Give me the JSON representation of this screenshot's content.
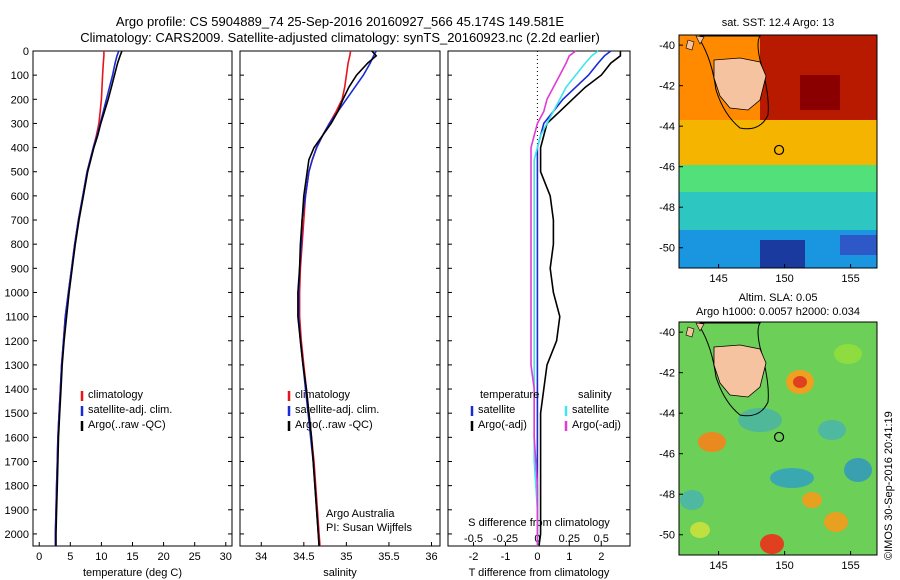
{
  "header": {
    "line1": "Argo profile: CS 5904889_74 25-Sep-2016 20160927_566 45.174S 149.581E",
    "line2": "Climatology: CARS2009. Satellite-adjusted climatology: synTS_20160923.nc (2.2d earlier)"
  },
  "credits": {
    "watermark": "©IMOS 30-Sep-2016 20:41:19",
    "group": "Argo Australia",
    "pi": "PI: Susan Wijffels"
  },
  "colors": {
    "red": "#e8141c",
    "blue": "#1a2ad6",
    "black": "#000000",
    "cyan": "#3fe6ee",
    "magenta": "#e23ad6",
    "land": "#f5c3a0"
  },
  "chart_data": [
    {
      "type": "line",
      "id": "temperature",
      "xlabel": "temperature (deg C)",
      "xlim": [
        -1,
        31
      ],
      "xticks": [
        0,
        5,
        10,
        15,
        20,
        25,
        30
      ],
      "ylim": [
        0,
        2050
      ],
      "yticks": [
        0,
        100,
        200,
        300,
        400,
        500,
        600,
        700,
        800,
        900,
        1000,
        1100,
        1200,
        1300,
        1400,
        1500,
        1600,
        1700,
        1800,
        1900,
        2000
      ],
      "legend": [
        "climatology",
        "satellite-adj. clim.",
        "Argo(..raw -QC)"
      ],
      "depth": [
        0,
        20,
        50,
        100,
        150,
        200,
        250,
        300,
        350,
        400,
        450,
        500,
        600,
        700,
        800,
        900,
        1000,
        1100,
        1200,
        1300,
        1400,
        1500,
        1600,
        1700,
        1800,
        1900,
        2000,
        2050
      ],
      "series": [
        {
          "name": "climatology",
          "color": "red",
          "values": [
            10.4,
            10.4,
            10.3,
            10.2,
            10.1,
            10.0,
            9.8,
            9.6,
            9.2,
            8.7,
            8.2,
            7.7,
            7.0,
            6.3,
            5.7,
            5.2,
            4.7,
            4.2,
            3.9,
            3.6,
            3.4,
            3.2,
            3.0,
            2.9,
            2.8,
            2.7,
            2.6,
            2.6
          ]
        },
        {
          "name": "satellite-adj. clim.",
          "color": "blue",
          "values": [
            12.8,
            12.5,
            12.2,
            11.8,
            11.3,
            10.8,
            10.3,
            9.8,
            9.3,
            8.7,
            8.2,
            7.7,
            7.0,
            6.3,
            5.7,
            5.2,
            4.7,
            4.2,
            3.9,
            3.6,
            3.4,
            3.2,
            3.0,
            2.9,
            2.8,
            2.7,
            2.6,
            2.6
          ]
        },
        {
          "name": "Argo(..raw -QC)",
          "color": "black",
          "values": [
            13.3,
            13.0,
            12.6,
            12.1,
            11.6,
            11.1,
            10.5,
            9.9,
            9.4,
            8.8,
            8.3,
            7.8,
            7.1,
            6.4,
            5.8,
            5.3,
            4.8,
            4.4,
            4.0,
            3.7,
            3.5,
            3.3,
            3.1,
            3.0,
            2.9,
            2.8,
            2.7,
            2.7
          ]
        }
      ]
    },
    {
      "type": "line",
      "id": "salinity",
      "xlabel": "salinity",
      "xlim": [
        33.75,
        36.1
      ],
      "xticks": [
        34,
        34.5,
        35,
        35.5,
        36
      ],
      "ylim": [
        0,
        2050
      ],
      "legend": [
        "climatology",
        "satellite-adj. clim.",
        "Argo(..raw -QC)"
      ],
      "depth": [
        0,
        20,
        50,
        100,
        150,
        200,
        250,
        300,
        350,
        400,
        450,
        500,
        600,
        700,
        800,
        900,
        1000,
        1100,
        1200,
        1300,
        1400,
        1500,
        1600,
        1700,
        1800,
        1900,
        2000,
        2050
      ],
      "series": [
        {
          "name": "climatology",
          "color": "red",
          "values": [
            35.05,
            35.04,
            35.02,
            35.0,
            34.98,
            34.95,
            34.88,
            34.8,
            34.72,
            34.65,
            34.6,
            34.56,
            34.52,
            34.5,
            34.48,
            34.46,
            34.45,
            34.45,
            34.47,
            34.5,
            34.53,
            34.56,
            34.59,
            34.62,
            34.64,
            34.66,
            34.68,
            34.69
          ]
        },
        {
          "name": "satellite-adj. clim.",
          "color": "blue",
          "values": [
            35.35,
            35.32,
            35.28,
            35.2,
            35.1,
            35.0,
            34.9,
            34.8,
            34.72,
            34.65,
            34.6,
            34.56,
            34.52,
            34.48,
            34.47,
            34.45,
            34.44,
            34.44,
            34.46,
            34.49,
            34.52,
            34.55,
            34.58,
            34.61,
            34.63,
            34.65,
            34.67,
            34.68
          ]
        },
        {
          "name": "Argo(..raw -QC)",
          "color": "black",
          "values": [
            35.3,
            35.35,
            35.25,
            35.12,
            35.03,
            34.96,
            34.9,
            34.82,
            34.72,
            34.62,
            34.56,
            34.54,
            34.5,
            34.48,
            34.46,
            34.45,
            34.43,
            34.43,
            34.46,
            34.49,
            34.53,
            34.56,
            34.59,
            34.61,
            34.63,
            34.65,
            34.67,
            34.68
          ]
        }
      ]
    },
    {
      "type": "line",
      "id": "difference",
      "xlabel": "T difference from climatology",
      "xlabel_top": "S difference from climatology",
      "xlim": [
        -2.8,
        2.9
      ],
      "xticks": [
        -2,
        -1,
        0,
        1,
        2
      ],
      "xticks_s": [
        -0.5,
        -0.25,
        0,
        0.25,
        0.5
      ],
      "xticklabels_s": [
        "-0.5",
        "-0.25",
        "0",
        "0.25",
        "0.5"
      ],
      "s_scale": 4,
      "ylim": [
        0,
        2050
      ],
      "legend_title_t": "temperature",
      "legend_title_s": "salinity",
      "legend_t": [
        "satellite",
        "Argo(-adj)"
      ],
      "legend_s": [
        "satellite",
        "Argo(-adj)"
      ],
      "depth": [
        0,
        20,
        50,
        100,
        150,
        200,
        250,
        300,
        350,
        400,
        450,
        500,
        600,
        700,
        800,
        900,
        1000,
        1100,
        1200,
        1300,
        1400,
        1500,
        1600,
        1700,
        1800,
        1900,
        2000,
        2050
      ],
      "series": [
        {
          "name": "T satellite",
          "color": "blue",
          "values": [
            2.3,
            2.1,
            1.9,
            1.6,
            1.2,
            0.8,
            0.5,
            0.2,
            0.1,
            0.0,
            0.0,
            0.0,
            0.0,
            0.0,
            0.0,
            0.0,
            0.0,
            0.0,
            0.0,
            0.0,
            0.0,
            0.0,
            0.0,
            0.0,
            0.0,
            0.0,
            0.0,
            0.0
          ]
        },
        {
          "name": "T Argo(-adj)",
          "color": "black",
          "values": [
            2.6,
            2.6,
            2.3,
            2.0,
            1.5,
            1.1,
            0.7,
            0.3,
            0.2,
            0.1,
            0.1,
            0.1,
            0.4,
            0.5,
            0.5,
            0.4,
            0.5,
            0.7,
            0.6,
            0.3,
            0.2,
            0.1,
            0.1,
            0.1,
            0.1,
            0.1,
            0.1,
            0.05
          ]
        },
        {
          "name": "S satellite",
          "color": "cyan",
          "values": [
            1.9,
            1.7,
            1.5,
            1.2,
            0.9,
            0.7,
            0.5,
            0.3,
            0.1,
            0.0,
            -0.1,
            -0.1,
            -0.1,
            -0.1,
            -0.1,
            -0.1,
            -0.1,
            -0.1,
            -0.1,
            -0.1,
            -0.1,
            -0.1,
            -0.1,
            -0.1,
            -0.05,
            0.0,
            0.0,
            0.0
          ]
        },
        {
          "name": "S Argo(-adj)",
          "color": "magenta",
          "values": [
            1.2,
            1.0,
            0.9,
            0.7,
            0.5,
            0.3,
            0.2,
            0.0,
            -0.1,
            -0.2,
            -0.2,
            -0.2,
            -0.2,
            -0.2,
            -0.2,
            -0.2,
            -0.2,
            -0.2,
            -0.2,
            -0.2,
            -0.1,
            -0.1,
            -0.1,
            -0.05,
            0.0,
            0.0,
            0.0,
            0.0
          ]
        }
      ]
    },
    {
      "type": "heatmap",
      "id": "sst-map",
      "title": "sat. SST: 12.4 Argo: 13",
      "xlim": [
        142,
        157
      ],
      "xticks": [
        145,
        150,
        155
      ],
      "ylim": [
        -51,
        -39.5
      ],
      "yticks": [
        -40,
        -42,
        -44,
        -46,
        -48,
        -50
      ],
      "float_position": [
        149.581,
        -45.174
      ]
    },
    {
      "type": "heatmap",
      "id": "sla-map",
      "title_line1": "Altim. SLA: 0.05",
      "title_line2": "Argo h1000: 0.0057 h2000: 0.034",
      "xlim": [
        142,
        157
      ],
      "xticks": [
        145,
        150,
        155
      ],
      "ylim": [
        -51,
        -39.5
      ],
      "yticks": [
        -40,
        -42,
        -44,
        -46,
        -48,
        -50
      ],
      "float_position": [
        149.581,
        -45.174
      ]
    }
  ]
}
